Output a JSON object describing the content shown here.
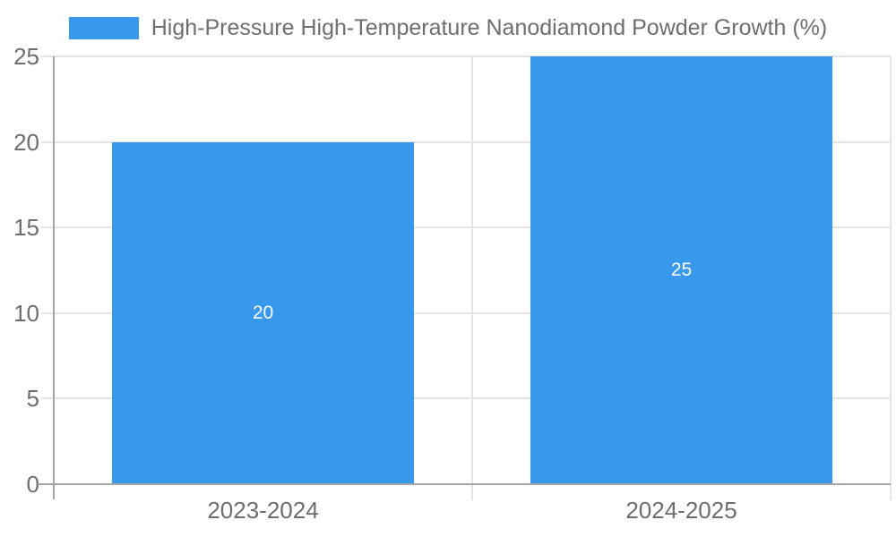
{
  "chart_data": {
    "type": "bar",
    "categories": [
      "2023-2024",
      "2024-2025"
    ],
    "series": [
      {
        "name": "High-Pressure High-Temperature Nanodiamond Powder Growth (%)",
        "values": [
          20,
          25
        ]
      }
    ],
    "bar_value_labels": [
      "20",
      "25"
    ],
    "title": "",
    "xlabel": "",
    "ylabel": "",
    "ylim": [
      0,
      25
    ],
    "yticks": [
      0,
      5,
      10,
      15,
      20,
      25
    ],
    "grid": true,
    "legend_position": "top-center",
    "bar_width_fraction": 0.72,
    "colors": {
      "bar": "#3899ec",
      "bar_label_text": "#ffffff",
      "axis_line": "#a6a6a6",
      "grid_line": "#e4e4e4",
      "tick_label_text": "#6e6e6e",
      "legend_text": "#6e6e6e",
      "background": "#ffffff"
    }
  }
}
